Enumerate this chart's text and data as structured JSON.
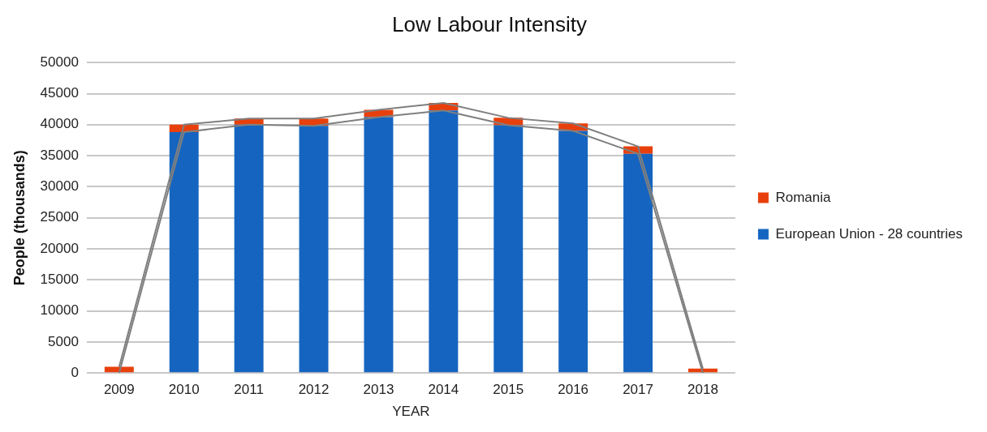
{
  "chart_data": {
    "type": "bar",
    "title": "Low Labour Intensity",
    "xlabel": "YEAR",
    "ylabel": "People (thousands)",
    "categories": [
      "2009",
      "2010",
      "2011",
      "2012",
      "2013",
      "2014",
      "2015",
      "2016",
      "2017",
      "2018"
    ],
    "series": [
      {
        "name": "European Union - 28 countries",
        "color": "#1565c0",
        "values": [
          0,
          38800,
          40000,
          39800,
          41200,
          42300,
          39900,
          39000,
          35300,
          0
        ]
      },
      {
        "name": "Romania",
        "color": "#e8400c",
        "values": [
          1000,
          1200,
          1000,
          1200,
          1200,
          1200,
          1200,
          1200,
          1200,
          700
        ]
      },
      {
        "type": "line",
        "color": "#7f7f7f",
        "values": [
          0,
          38800,
          40000,
          39800,
          41200,
          42300,
          39900,
          39000,
          35300,
          0
        ]
      },
      {
        "type": "line",
        "color": "#7f7f7f",
        "values": [
          1000,
          40000,
          41000,
          41000,
          42400,
          43500,
          41100,
          40200,
          36500,
          700
        ]
      }
    ],
    "stacked": true,
    "ylim": [
      0,
      50000
    ],
    "yticks": [
      0,
      5000,
      10000,
      15000,
      20000,
      25000,
      30000,
      35000,
      40000,
      45000,
      50000
    ],
    "grid": "y",
    "legend": "right",
    "marker": "none"
  }
}
